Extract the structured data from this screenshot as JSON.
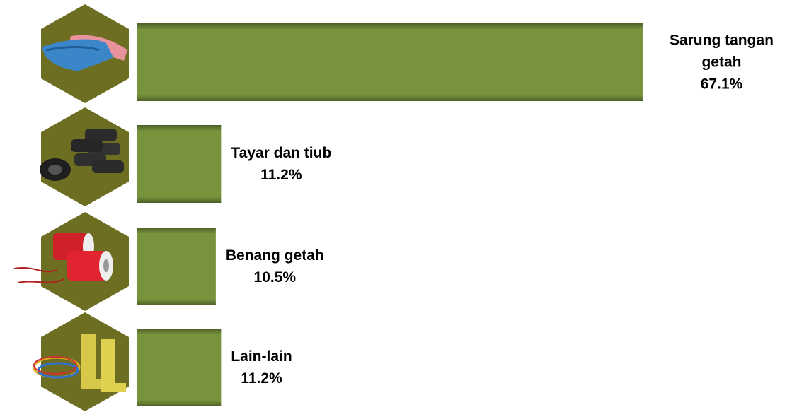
{
  "chart_data": {
    "type": "bar",
    "orientation": "horizontal",
    "categories": [
      "Sarung tangan getah",
      "Tayar dan tiub",
      "Benang getah",
      "Lain-lain"
    ],
    "values": [
      67.1,
      11.2,
      10.5,
      11.2
    ],
    "value_labels": [
      "67.1%",
      "11.2%",
      "10.5%",
      "11.2%"
    ],
    "color": "#77933c"
  }
}
